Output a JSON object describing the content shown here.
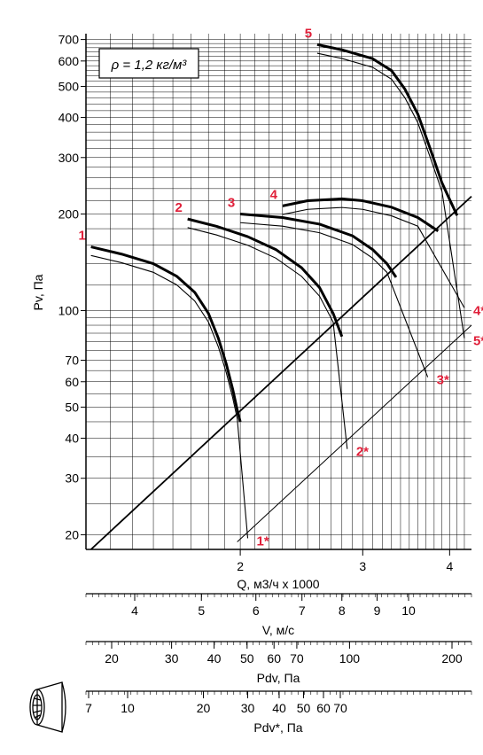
{
  "chart_data": {
    "type": "line",
    "density_label": "ρ = 1,2 кг/м³",
    "y_axis": {
      "label": "Pv, Па",
      "scale": "log",
      "range": [
        18,
        730
      ],
      "ticks": [
        20,
        30,
        40,
        50,
        60,
        70,
        100,
        200,
        300,
        400,
        500,
        600,
        700
      ]
    },
    "x_axis": {
      "label": "Q, м3/ч x 1000",
      "scale": "log",
      "range": [
        1.2,
        4.3
      ],
      "ticks": [
        2,
        3,
        4
      ]
    },
    "secondary_axes": [
      {
        "label": "V, м/с",
        "ticks": [
          4,
          5,
          6,
          7,
          8,
          9,
          10
        ]
      },
      {
        "label": "Pdv, Па",
        "ticks": [
          20,
          30,
          40,
          50,
          60,
          70,
          100,
          200
        ]
      },
      {
        "label": "Pdv*, Па",
        "ticks": [
          7,
          10,
          20,
          30,
          40,
          50,
          60,
          70
        ]
      }
    ],
    "grid": true,
    "series": [
      {
        "name": "1",
        "x": [
          1.22,
          1.35,
          1.5,
          1.62,
          1.72,
          1.8,
          1.86,
          1.91,
          1.95,
          1.98,
          2.0
        ],
        "y": [
          158,
          150,
          140,
          128,
          114,
          98,
          82,
          68,
          57,
          49,
          45
        ]
      },
      {
        "name": "2",
        "x": [
          1.68,
          1.85,
          2.05,
          2.25,
          2.45,
          2.6,
          2.72,
          2.8
        ],
        "y": [
          193,
          183,
          170,
          155,
          136,
          118,
          98,
          83
        ]
      },
      {
        "name": "3",
        "x": [
          2.0,
          2.3,
          2.6,
          2.9,
          3.1,
          3.25,
          3.35
        ],
        "y": [
          200,
          195,
          186,
          171,
          155,
          140,
          127
        ]
      },
      {
        "name": "4",
        "x": [
          2.3,
          2.5,
          2.8,
          3.0,
          3.3,
          3.6,
          3.85
        ],
        "y": [
          212,
          220,
          223,
          220,
          210,
          195,
          177
        ]
      },
      {
        "name": "5",
        "x": [
          2.58,
          2.8,
          3.1,
          3.3,
          3.45,
          3.6,
          3.75,
          3.9,
          4.1
        ],
        "y": [
          675,
          650,
          610,
          560,
          490,
          410,
          320,
          250,
          198
        ]
      }
    ],
    "star_points": [
      {
        "label": "1*",
        "x": 2.05,
        "y": 19.5
      },
      {
        "label": "2*",
        "x": 2.85,
        "y": 37
      },
      {
        "label": "3*",
        "x": 3.72,
        "y": 62
      },
      {
        "label": "4*",
        "x": 4.2,
        "y": 102
      },
      {
        "label": "5*",
        "x": 4.2,
        "y": 82
      }
    ]
  }
}
